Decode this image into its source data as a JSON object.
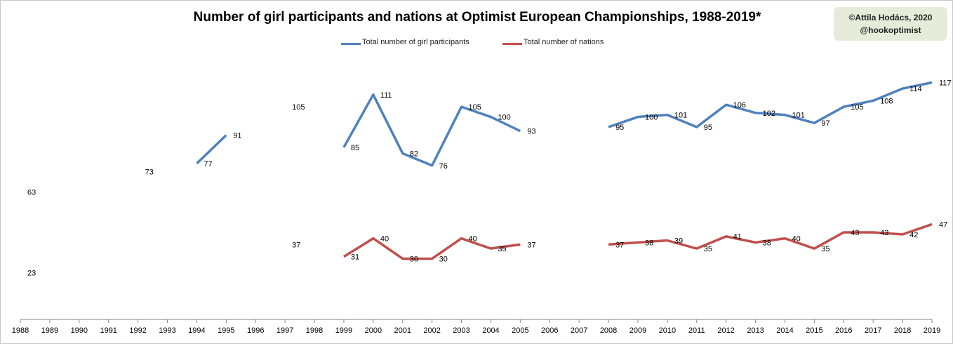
{
  "chart_data": {
    "type": "line",
    "title": "Number of girl participants and nations at Optimist European Championships, 1988-2019*",
    "credit": [
      "©Attila Hodács, 2020",
      "@hookoptimist"
    ],
    "x": [
      "1988",
      "1989",
      "1990",
      "1991",
      "1992",
      "1993",
      "1994",
      "1995",
      "1996",
      "1997",
      "1998",
      "1999",
      "2000",
      "2001",
      "2002",
      "2003",
      "2004",
      "2005",
      "2006",
      "2007",
      "2008",
      "2009",
      "2010",
      "2011",
      "2012",
      "2013",
      "2014",
      "2015",
      "2016",
      "2017",
      "2018",
      "2019"
    ],
    "series": [
      {
        "name": "Total number of girl participants",
        "color": "#4f81bd",
        "values": [
          63,
          null,
          null,
          null,
          73,
          null,
          77,
          91,
          null,
          105,
          null,
          85,
          111,
          82,
          76,
          105,
          100,
          93,
          null,
          null,
          95,
          100,
          101,
          95,
          106,
          102,
          101,
          97,
          105,
          108,
          114,
          117
        ]
      },
      {
        "name": "Total number of nations",
        "color": "#c0504d",
        "values": [
          23,
          null,
          null,
          null,
          null,
          null,
          null,
          null,
          null,
          37,
          null,
          31,
          40,
          30,
          30,
          40,
          35,
          37,
          null,
          null,
          37,
          38,
          39,
          35,
          41,
          38,
          40,
          35,
          43,
          43,
          42,
          47
        ]
      }
    ],
    "legend_position": "top",
    "ylim": [
      0,
      130
    ],
    "grid": false
  }
}
